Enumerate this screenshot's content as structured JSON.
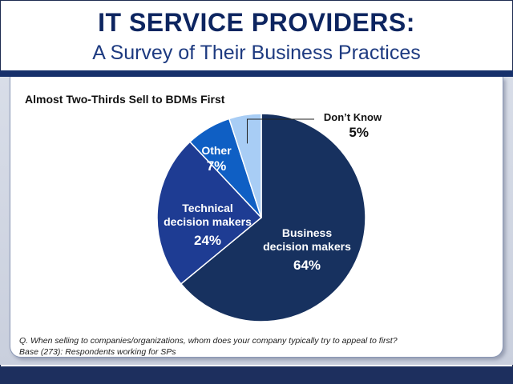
{
  "header": {
    "title": "IT SERVICE PROVIDERS:",
    "subtitle": "A Survey of Their Business Practices"
  },
  "chart_data": {
    "type": "pie",
    "title": "Almost Two-Thirds Sell to BDMs First",
    "slices": [
      {
        "label": "Business decision makers",
        "label_lines": [
          "Business",
          "decision makers"
        ],
        "value": 64,
        "value_label": "64%",
        "color": "#17315f"
      },
      {
        "label": "Technical decision makers",
        "label_lines": [
          "Technical",
          "decision makers"
        ],
        "value": 24,
        "value_label": "24%",
        "color": "#1e3c93"
      },
      {
        "label": "Other",
        "label_lines": [
          "Other"
        ],
        "value": 7,
        "value_label": "7%",
        "color": "#0f5fc4"
      },
      {
        "label": "Don’t Know",
        "label_lines": [
          "Don’t Know"
        ],
        "value": 5,
        "value_label": "5%",
        "color": "#a8cdf5"
      }
    ]
  },
  "footnotes": {
    "question": "Q. When selling to companies/organizations, whom does your company typically try to appeal to first?",
    "base": "Base (273):  Respondents working for SPs"
  },
  "colors": {
    "brand": "#0d2560",
    "band": "#17306b"
  }
}
